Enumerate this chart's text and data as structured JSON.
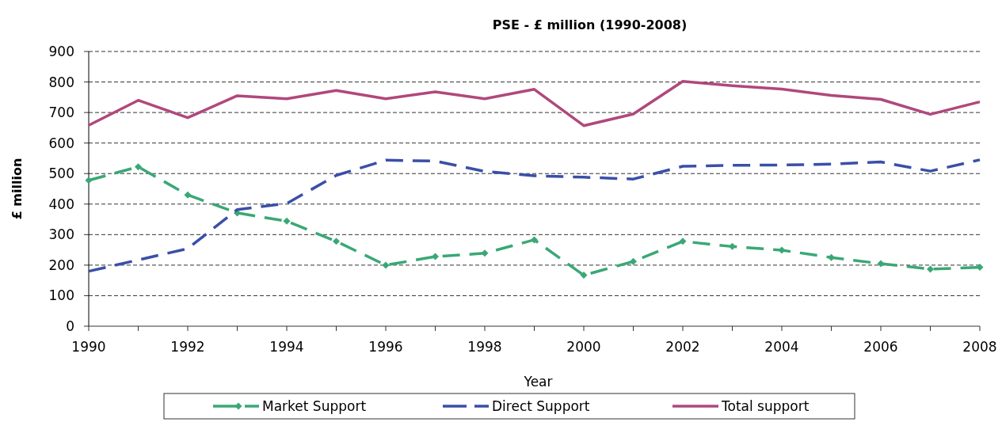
{
  "chart_data": {
    "type": "line",
    "title": "PSE - £ million (1990-2008)",
    "xlabel": "Year",
    "ylabel": "£ million",
    "x": [
      1990,
      1991,
      1992,
      1993,
      1994,
      1995,
      1996,
      1997,
      1998,
      1999,
      2000,
      2001,
      2002,
      2003,
      2004,
      2005,
      2006,
      2007,
      2008
    ],
    "xlim": [
      1990,
      2008
    ],
    "xticks": [
      1990,
      1992,
      1994,
      1996,
      1998,
      2000,
      2002,
      2004,
      2006,
      2008
    ],
    "ylim": [
      0,
      900
    ],
    "yticks": [
      0,
      100,
      200,
      300,
      400,
      500,
      600,
      700,
      800,
      900
    ],
    "grid": "y",
    "legend": "bottom",
    "series": [
      {
        "name": "Market Support",
        "color": "#3aa876",
        "marker": "diamond",
        "line_style": "dashed",
        "values": [
          478,
          522,
          430,
          371,
          344,
          278,
          200,
          228,
          239,
          283,
          167,
          212,
          278,
          261,
          249,
          225,
          205,
          187,
          193
        ]
      },
      {
        "name": "Direct Support",
        "color": "#3a4fa8",
        "marker": "none",
        "line_style": "dashed",
        "values": [
          180,
          217,
          254,
          382,
          402,
          494,
          544,
          541,
          507,
          493,
          488,
          482,
          524,
          527,
          528,
          531,
          538,
          508,
          545
        ]
      },
      {
        "name": "Total support",
        "color": "#b0487c",
        "marker": "none",
        "line_style": "solid",
        "values": [
          658,
          740,
          683,
          755,
          745,
          772,
          745,
          768,
          745,
          776,
          657,
          695,
          802,
          788,
          777,
          756,
          743,
          694,
          735
        ]
      }
    ]
  }
}
